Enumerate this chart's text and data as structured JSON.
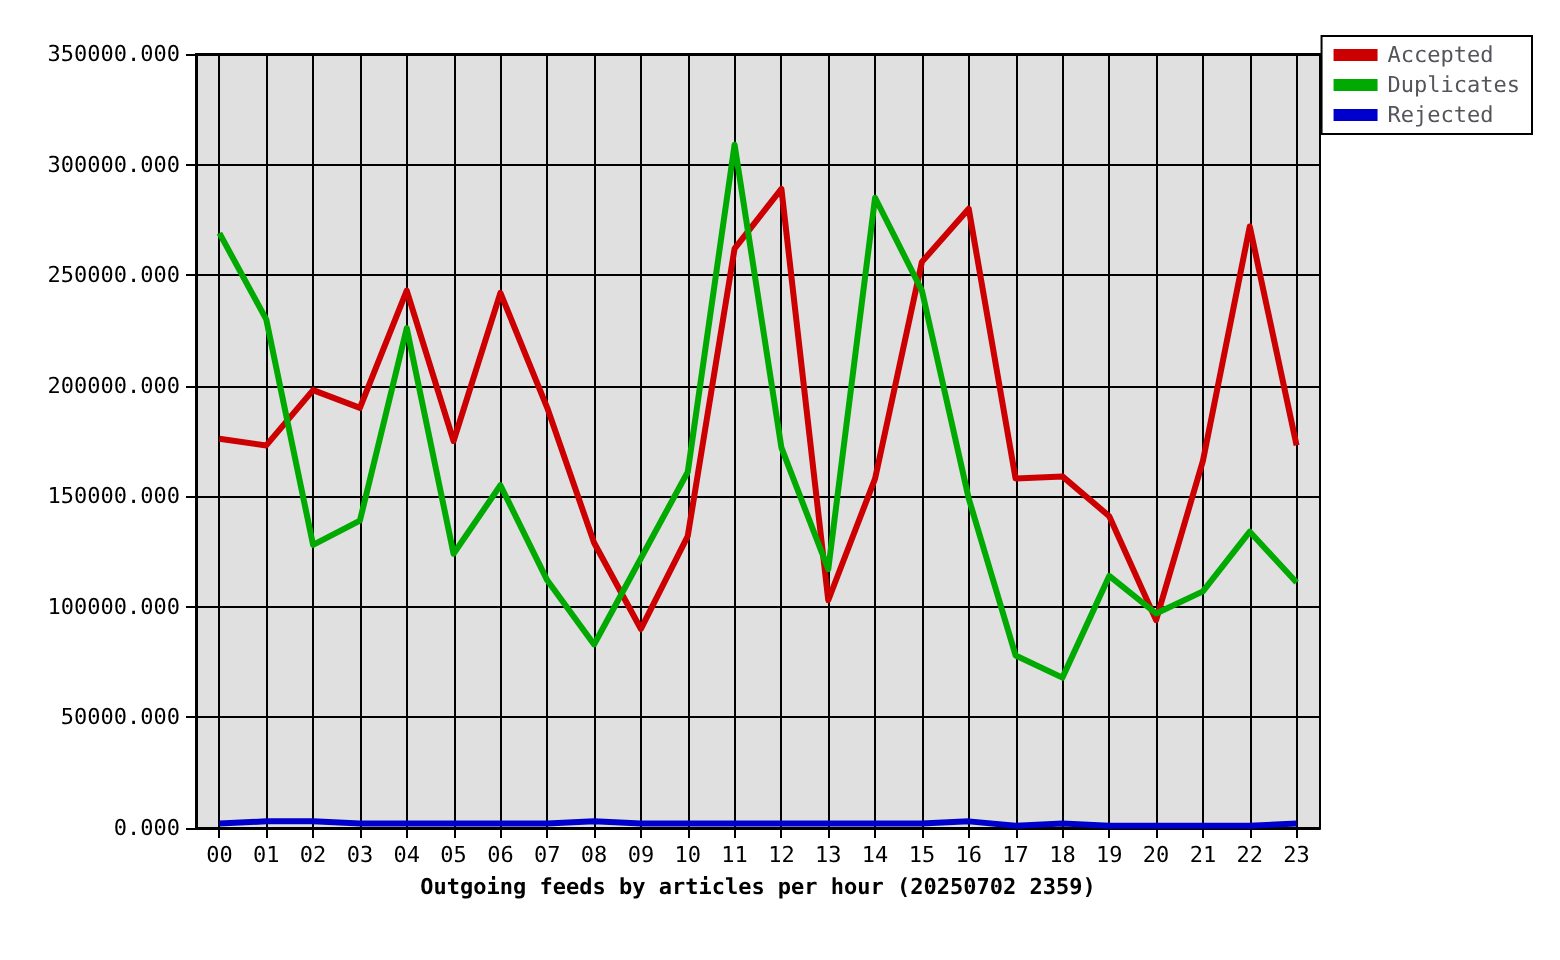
{
  "chart_data": {
    "type": "line",
    "xlabel": "Outgoing feeds by articles per hour (20250702 2359)",
    "categories": [
      "00",
      "01",
      "02",
      "03",
      "04",
      "05",
      "06",
      "07",
      "08",
      "09",
      "10",
      "11",
      "12",
      "13",
      "14",
      "15",
      "16",
      "17",
      "18",
      "19",
      "20",
      "21",
      "22",
      "23"
    ],
    "series": [
      {
        "name": "Accepted",
        "color": "#cc0000",
        "values": [
          176000,
          173000,
          198000,
          190000,
          243000,
          175000,
          242000,
          190000,
          129000,
          90000,
          132000,
          262000,
          289000,
          103000,
          158000,
          256000,
          280000,
          158000,
          159000,
          141000,
          94000,
          166000,
          272000,
          173000
        ]
      },
      {
        "name": "Duplicates",
        "color": "#00aa00",
        "values": [
          269000,
          230000,
          128000,
          139000,
          226000,
          124000,
          155000,
          112000,
          83000,
          122000,
          161000,
          309000,
          172000,
          117000,
          285000,
          243000,
          149000,
          78000,
          68000,
          114000,
          97000,
          107000,
          134000,
          111000
        ]
      },
      {
        "name": "Rejected",
        "color": "#0000cc",
        "values": [
          2000,
          3000,
          3000,
          2000,
          2000,
          2000,
          2000,
          2000,
          3000,
          2000,
          2000,
          2000,
          2000,
          2000,
          2000,
          2000,
          3000,
          1000,
          2000,
          1000,
          1000,
          1000,
          1000,
          2000
        ]
      }
    ],
    "ylim": [
      0,
      350000
    ],
    "yticks": [
      {
        "value": 0,
        "label": "0.000"
      },
      {
        "value": 50000,
        "label": "50000.000"
      },
      {
        "value": 100000,
        "label": "100000.000"
      },
      {
        "value": 150000,
        "label": "150000.000"
      },
      {
        "value": 200000,
        "label": "200000.000"
      },
      {
        "value": 250000,
        "label": "250000.000"
      },
      {
        "value": 300000,
        "label": "300000.000"
      },
      {
        "value": 350000,
        "label": "350000.000"
      }
    ],
    "grid": true,
    "legend": "top right",
    "marker": "none",
    "line_style": "solid"
  }
}
